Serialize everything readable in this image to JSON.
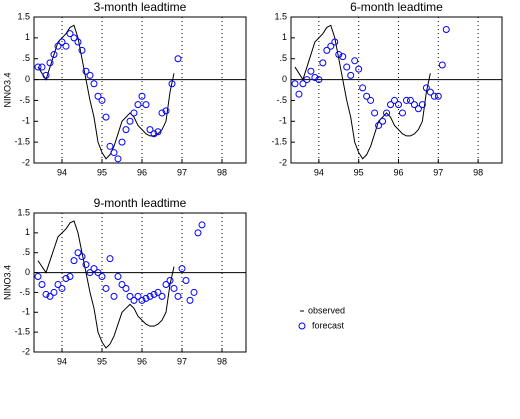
{
  "chart_data": [
    {
      "type": "scatter",
      "title": "3-month leadtime",
      "ylabel": "NINO3.4",
      "xlim": [
        93.3,
        98.6
      ],
      "xticks": [
        94,
        95,
        96,
        97,
        98
      ],
      "ylim": [
        -2,
        1.5
      ],
      "yticks": [
        1.5,
        1,
        {
          "value": 0.5,
          "label": ".5"
        },
        0,
        {
          "value": -0.5,
          "label": "-.5"
        },
        -1,
        -1.5,
        -2
      ],
      "grid": "x",
      "series": [
        {
          "name": "observed",
          "color": "#000000",
          "style": "line",
          "x": [
            93.4,
            93.5,
            93.6,
            93.7,
            93.8,
            93.9,
            94.0,
            94.1,
            94.2,
            94.3,
            94.4,
            94.5,
            94.6,
            94.7,
            94.8,
            94.9,
            95.0,
            95.1,
            95.2,
            95.3,
            95.4,
            95.5,
            95.6,
            95.7,
            95.8,
            95.9,
            96.0,
            96.1,
            96.2,
            96.3,
            96.4,
            96.5,
            96.6,
            96.7,
            96.8
          ],
          "values": [
            0.3,
            0.15,
            0.0,
            0.3,
            0.6,
            0.9,
            1.0,
            1.1,
            1.25,
            1.3,
            1.0,
            0.5,
            0.0,
            -0.5,
            -0.9,
            -1.5,
            -1.75,
            -1.9,
            -1.8,
            -1.6,
            -1.3,
            -1.0,
            -0.9,
            -0.8,
            -0.9,
            -1.1,
            -1.2,
            -1.3,
            -1.35,
            -1.35,
            -1.3,
            -1.2,
            -1.0,
            -0.3,
            0.15
          ]
        },
        {
          "name": "forecast",
          "color": "#0000ff",
          "style": "marker",
          "x": [
            93.4,
            93.5,
            93.6,
            93.7,
            93.8,
            93.9,
            94.0,
            94.1,
            94.2,
            94.3,
            94.4,
            94.5,
            94.6,
            94.7,
            94.8,
            94.9,
            95.0,
            95.1,
            95.2,
            95.3,
            95.4,
            95.5,
            95.6,
            95.7,
            95.8,
            95.9,
            96.0,
            96.1,
            96.2,
            96.3,
            96.4,
            96.5,
            96.6,
            96.75,
            96.9
          ],
          "values": [
            0.3,
            0.3,
            0.1,
            0.4,
            0.6,
            0.8,
            0.9,
            0.8,
            1.1,
            1.0,
            0.9,
            0.7,
            0.2,
            0.1,
            -0.1,
            -0.4,
            -0.5,
            -0.9,
            -1.6,
            -1.75,
            -1.9,
            -1.5,
            -1.2,
            -1.0,
            -0.8,
            -0.6,
            -0.4,
            -0.6,
            -1.2,
            -1.3,
            -1.25,
            -0.8,
            -0.75,
            -0.1,
            0.5
          ]
        }
      ]
    },
    {
      "type": "scatter",
      "title": "6-month leadtime",
      "xlim": [
        93.3,
        98.6
      ],
      "xticks": [
        94,
        95,
        96,
        97,
        98
      ],
      "ylim": [
        -2,
        1.5
      ],
      "yticks": [
        1.5,
        1,
        {
          "value": 0.5,
          "label": ".5"
        },
        0,
        {
          "value": -0.5,
          "label": "-.5"
        },
        -1,
        -1.5,
        -2
      ],
      "grid": "x",
      "series": [
        {
          "name": "observed",
          "color": "#000000",
          "style": "line",
          "x": [
            93.4,
            93.5,
            93.6,
            93.7,
            93.8,
            93.9,
            94.0,
            94.1,
            94.2,
            94.3,
            94.4,
            94.5,
            94.6,
            94.7,
            94.8,
            94.9,
            95.0,
            95.1,
            95.2,
            95.3,
            95.4,
            95.5,
            95.6,
            95.7,
            95.8,
            95.9,
            96.0,
            96.1,
            96.2,
            96.3,
            96.4,
            96.5,
            96.6,
            96.7,
            96.8
          ],
          "values": [
            0.3,
            0.15,
            0.0,
            0.3,
            0.6,
            0.9,
            1.0,
            1.1,
            1.25,
            1.3,
            1.0,
            0.5,
            0.0,
            -0.5,
            -0.9,
            -1.5,
            -1.75,
            -1.9,
            -1.8,
            -1.6,
            -1.3,
            -1.0,
            -0.9,
            -0.8,
            -0.9,
            -1.1,
            -1.2,
            -1.3,
            -1.35,
            -1.35,
            -1.3,
            -1.2,
            -1.0,
            -0.3,
            0.15
          ]
        },
        {
          "name": "forecast",
          "color": "#0000ff",
          "style": "marker",
          "x": [
            93.4,
            93.5,
            93.6,
            93.7,
            93.8,
            93.9,
            94.0,
            94.1,
            94.2,
            94.3,
            94.4,
            94.5,
            94.6,
            94.7,
            94.8,
            94.9,
            95.0,
            95.1,
            95.2,
            95.3,
            95.4,
            95.5,
            95.6,
            95.7,
            95.8,
            95.9,
            96.0,
            96.1,
            96.2,
            96.3,
            96.4,
            96.5,
            96.6,
            96.7,
            96.8,
            96.9,
            97.0,
            97.1,
            97.2
          ],
          "values": [
            -0.1,
            -0.35,
            -0.1,
            0.0,
            0.2,
            0.05,
            0.0,
            0.4,
            0.7,
            0.8,
            0.9,
            0.6,
            0.55,
            0.3,
            0.1,
            0.45,
            0.25,
            -0.2,
            -0.4,
            -0.5,
            -0.8,
            -1.1,
            -1.0,
            -0.8,
            -0.6,
            -0.5,
            -0.6,
            -0.8,
            -0.5,
            -0.5,
            -0.6,
            -0.7,
            -0.6,
            -0.2,
            -0.3,
            -0.4,
            -0.4,
            0.35,
            1.2
          ]
        }
      ]
    },
    {
      "type": "scatter",
      "title": "9-month leadtime",
      "ylabel": "NINO3.4",
      "xlim": [
        93.3,
        98.6
      ],
      "xticks": [
        94,
        95,
        96,
        97,
        98
      ],
      "ylim": [
        -2,
        1.5
      ],
      "yticks": [
        1.5,
        1,
        {
          "value": 0.5,
          "label": ".5"
        },
        0,
        {
          "value": -0.5,
          "label": "-.5"
        },
        -1,
        -1.5,
        -2
      ],
      "grid": "x",
      "series": [
        {
          "name": "observed",
          "color": "#000000",
          "style": "line",
          "x": [
            93.4,
            93.5,
            93.6,
            93.7,
            93.8,
            93.9,
            94.0,
            94.1,
            94.2,
            94.3,
            94.4,
            94.5,
            94.6,
            94.7,
            94.8,
            94.9,
            95.0,
            95.1,
            95.2,
            95.3,
            95.4,
            95.5,
            95.6,
            95.7,
            95.8,
            95.9,
            96.0,
            96.1,
            96.2,
            96.3,
            96.4,
            96.5,
            96.6,
            96.7,
            96.8
          ],
          "values": [
            0.3,
            0.15,
            0.0,
            0.3,
            0.6,
            0.9,
            1.0,
            1.1,
            1.25,
            1.3,
            1.0,
            0.5,
            0.0,
            -0.5,
            -0.9,
            -1.5,
            -1.75,
            -1.9,
            -1.8,
            -1.6,
            -1.3,
            -1.0,
            -0.9,
            -0.8,
            -0.9,
            -1.1,
            -1.2,
            -1.3,
            -1.35,
            -1.35,
            -1.3,
            -1.2,
            -1.0,
            -0.3,
            0.15
          ]
        },
        {
          "name": "forecast",
          "color": "#0000ff",
          "style": "marker",
          "x": [
            93.4,
            93.5,
            93.6,
            93.7,
            93.8,
            93.9,
            94.0,
            94.1,
            94.2,
            94.3,
            94.4,
            94.5,
            94.6,
            94.7,
            94.8,
            94.9,
            95.0,
            95.1,
            95.2,
            95.3,
            95.4,
            95.5,
            95.6,
            95.7,
            95.8,
            95.9,
            96.0,
            96.1,
            96.2,
            96.3,
            96.4,
            96.5,
            96.6,
            96.7,
            96.8,
            96.9,
            97.0,
            97.1,
            97.2,
            97.3,
            97.4,
            97.5
          ],
          "values": [
            -0.1,
            -0.3,
            -0.55,
            -0.6,
            -0.5,
            -0.3,
            -0.4,
            -0.15,
            -0.1,
            0.3,
            0.5,
            0.4,
            0.2,
            0.0,
            0.1,
            0.0,
            -0.1,
            -0.4,
            0.35,
            -0.6,
            -0.1,
            -0.3,
            -0.4,
            -0.6,
            -0.7,
            -0.6,
            -0.7,
            -0.65,
            -0.6,
            -0.55,
            -0.5,
            -0.6,
            -0.3,
            -0.2,
            -0.4,
            -0.6,
            0.1,
            -0.2,
            -0.7,
            -0.5,
            1.0,
            1.2
          ]
        }
      ]
    }
  ]
}
